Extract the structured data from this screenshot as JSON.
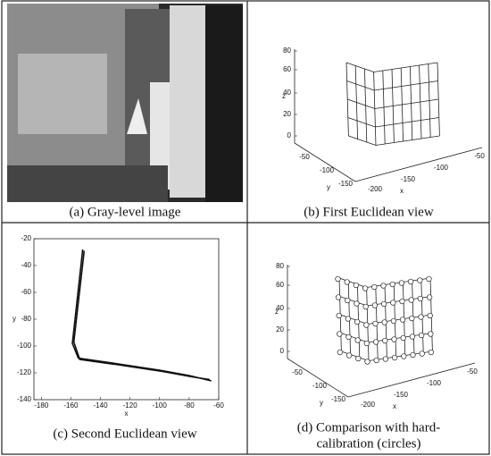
{
  "panels": [
    {
      "caption": "(a) Gray-level image"
    },
    {
      "caption": "(b) First Euclidean view",
      "z_ticks": [
        0,
        20,
        40,
        60,
        80
      ],
      "y_ticks": [
        -50,
        -100,
        -150
      ],
      "x_ticks": [
        -200,
        -150,
        -100,
        -50
      ],
      "x_label": "x",
      "y_label": "y",
      "z_label": "z"
    },
    {
      "caption": "(c)  Second Euclidean view",
      "chart": {
        "type": "line",
        "x_label": "x",
        "y_label": "y",
        "xlim": [
          -185,
          -60
        ],
        "ylim": [
          -140,
          -20
        ],
        "xticks": [
          -180,
          -160,
          -140,
          -120,
          -100,
          -80,
          -60
        ],
        "yticks": [
          -20,
          -40,
          -60,
          -80,
          -100,
          -120,
          -140
        ],
        "series": [
          {
            "color": "#111111",
            "x": [
              -152,
              -159,
              -155,
              -130,
              -100,
              -80,
              -65
            ],
            "values": [
              -28,
              -98,
              -109,
              -113,
              -118,
              -122,
              -126
            ]
          },
          {
            "color": "#111111",
            "x": [
              -151,
              -158,
              -154,
              -128,
              -98,
              -78,
              -66
            ],
            "values": [
              -29,
              -97,
              -110,
              -114,
              -119,
              -123,
              -125
            ]
          }
        ]
      }
    },
    {
      "caption_lines": [
        "(d) Comparison with hard-",
        "calibration (circles)"
      ],
      "z_ticks": [
        0,
        20,
        40,
        60,
        80
      ],
      "y_ticks": [
        -50,
        -100,
        -150
      ],
      "x_ticks": [
        -200,
        -150,
        -100,
        -50
      ],
      "x_label": "x",
      "y_label": "y",
      "z_label": "z"
    }
  ]
}
